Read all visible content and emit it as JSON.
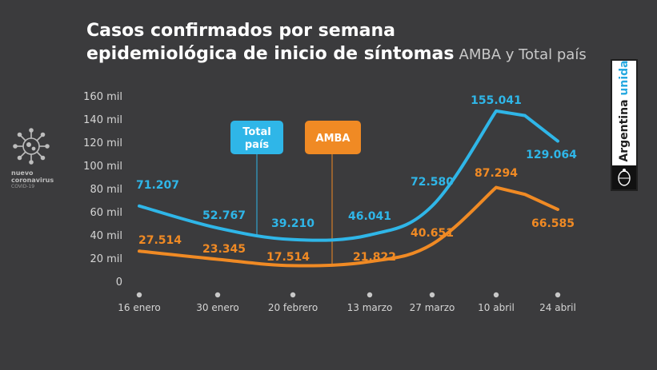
{
  "header": {
    "title_line1": "Casos confirmados por semana",
    "title_line2": "epidemiológica de inicio de síntomas",
    "subtitle": "AMBA y Total país"
  },
  "badge": {
    "line1": "nuevo",
    "line2": "coronavirus",
    "line3": "COVID-19",
    "icon": "virus-icon"
  },
  "brand": {
    "text_main": "Argentina",
    "text_highlight": "unida",
    "seal_icon": "national-seal-icon"
  },
  "colors": {
    "background": "#3b3b3d",
    "total_pais": "#2fb6e8",
    "amba": "#f08a24",
    "text": "#ffffff"
  },
  "chart_data": {
    "type": "line",
    "ylim": [
      0,
      160000
    ],
    "yticks": [
      "0",
      "20 mil",
      "40 mil",
      "60 mil",
      "80 mil",
      "100 mil",
      "120 mil",
      "140 mil",
      "160 mil"
    ],
    "ytick_values": [
      0,
      20000,
      40000,
      60000,
      80000,
      100000,
      120000,
      140000,
      160000
    ],
    "categories": [
      "16 enero",
      "30 enero",
      "20 febrero",
      "13 marzo",
      "27 marzo",
      "10 abril",
      "24 abril"
    ],
    "series": [
      {
        "name": "Total país",
        "color": "#2fb6e8",
        "points": [
          {
            "x": "16 enero",
            "y": 65000
          },
          {
            "x": "30 enero",
            "y": 46000
          },
          {
            "x": "20 febrero",
            "y": 36000
          },
          {
            "x": "13 marzo",
            "y": 40000
          },
          {
            "x": "27 marzo",
            "y": 65000
          },
          {
            "x": "10 abril",
            "y": 147000
          },
          {
            "x": "17 abril",
            "y": 143000
          },
          {
            "x": "24 abril",
            "y": 121000
          }
        ],
        "labels": [
          {
            "text": "71.207",
            "at": "16 enero"
          },
          {
            "text": "52.767",
            "at": "30 enero"
          },
          {
            "text": "39.210",
            "at": "20 febrero"
          },
          {
            "text": "46.041",
            "at": "13 marzo"
          },
          {
            "text": "72.580",
            "at": "27 marzo"
          },
          {
            "text": "155.041",
            "at": "10 abril"
          },
          {
            "text": "129.064",
            "at": "24 abril"
          }
        ]
      },
      {
        "name": "AMBA",
        "color": "#f08a24",
        "points": [
          {
            "x": "16 enero",
            "y": 26000
          },
          {
            "x": "30 enero",
            "y": 19000
          },
          {
            "x": "20 febrero",
            "y": 13500
          },
          {
            "x": "13 marzo",
            "y": 17000
          },
          {
            "x": "27 marzo",
            "y": 32000
          },
          {
            "x": "10 abril",
            "y": 81000
          },
          {
            "x": "17 abril",
            "y": 75000
          },
          {
            "x": "24 abril",
            "y": 62000
          }
        ],
        "labels": [
          {
            "text": "27.514",
            "at": "16 enero"
          },
          {
            "text": "23.345",
            "at": "30 enero"
          },
          {
            "text": "17.514",
            "at": "20 febrero"
          },
          {
            "text": "21.822",
            "at": "13 marzo"
          },
          {
            "text": "40.651",
            "at": "27 marzo"
          },
          {
            "text": "87.294",
            "at": "10 abril"
          },
          {
            "text": "66.585",
            "at": "24 abril"
          }
        ]
      }
    ],
    "callouts": [
      {
        "text_line1": "Total",
        "text_line2": "país",
        "series": "Total país"
      },
      {
        "text_line1": "AMBA",
        "text_line2": "",
        "series": "AMBA"
      }
    ]
  }
}
